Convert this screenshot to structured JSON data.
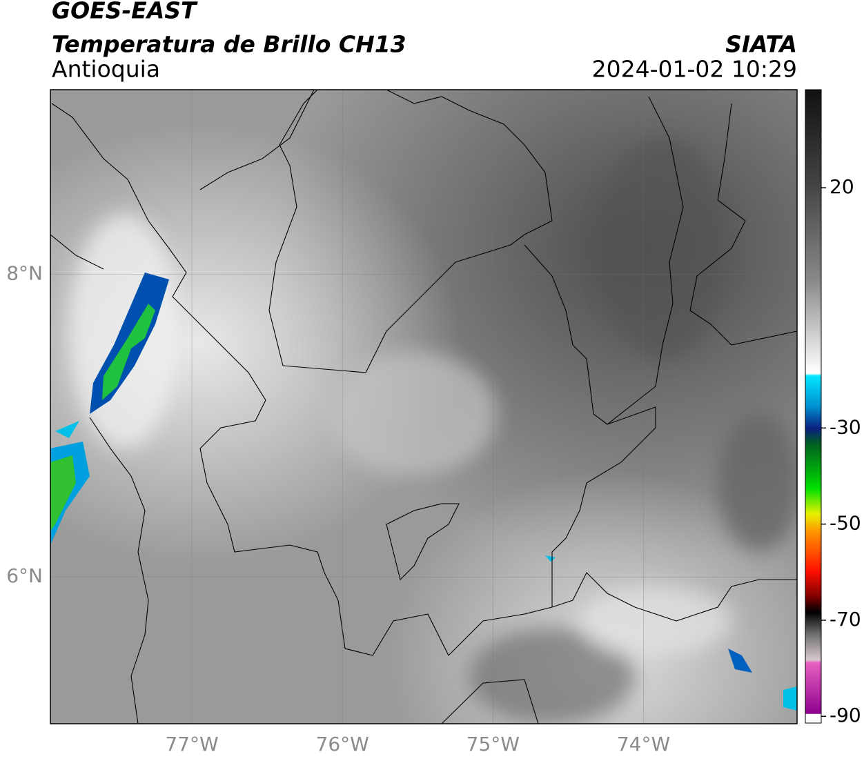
{
  "header": {
    "title": "GOES-EAST",
    "subtitle": "Temperatura de Brillo CH13",
    "region": "Antioquia",
    "source": "SIATA",
    "datetime": "2024-01-02 10:29"
  },
  "map": {
    "lonlim": [
      -77.94,
      -72.98
    ],
    "latlim": [
      5.03,
      9.22
    ],
    "lonticks": [
      {
        "value": -77,
        "label": "77°W"
      },
      {
        "value": -76,
        "label": "76°W"
      },
      {
        "value": -75,
        "label": "75°W"
      },
      {
        "value": -74,
        "label": "74°W"
      }
    ],
    "latticks": [
      {
        "value": 8,
        "label": "8°N"
      },
      {
        "value": 6,
        "label": "6°N"
      }
    ],
    "grid": true
  },
  "colorbar": {
    "lim": [
      -91.4,
      40.4
    ],
    "ticks": [
      20,
      -30,
      -50,
      -70,
      -90
    ]
  }
}
